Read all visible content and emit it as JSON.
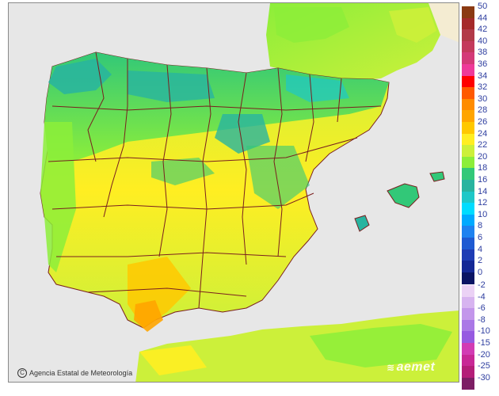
{
  "credit": {
    "copyright_symbol": "C",
    "text": "Agencia Estatal de Meteorología"
  },
  "logo": {
    "text": "aemet",
    "swoosh": "≋"
  },
  "colors": {
    "sea": "#e7e7e7",
    "land_outside": "#f4ecd2",
    "border": "#7a1f1f"
  },
  "legend": {
    "positive": [
      {
        "label": "50",
        "color": "#8b3a12"
      },
      {
        "label": "44",
        "color": "#a52a2a"
      },
      {
        "label": "42",
        "color": "#b23a48"
      },
      {
        "label": "40",
        "color": "#c43a5c"
      },
      {
        "label": "38",
        "color": "#d43a78"
      },
      {
        "label": "36",
        "color": "#ee3a9a"
      },
      {
        "label": "34",
        "color": "#ff0000"
      },
      {
        "label": "32",
        "color": "#ff5a00"
      },
      {
        "label": "30",
        "color": "#ff8c00"
      },
      {
        "label": "28",
        "color": "#ffa500"
      },
      {
        "label": "26",
        "color": "#ffc800"
      },
      {
        "label": "24",
        "color": "#ffee22"
      },
      {
        "label": "22",
        "color": "#ccf03a"
      },
      {
        "label": "20",
        "color": "#8cee3a"
      },
      {
        "label": "18",
        "color": "#32c878"
      },
      {
        "label": "16",
        "color": "#28b4a0"
      },
      {
        "label": "14",
        "color": "#1ec8c8"
      },
      {
        "label": "12",
        "color": "#00dcff"
      },
      {
        "label": "10",
        "color": "#00aaff"
      },
      {
        "label": "8",
        "color": "#1e82f0"
      },
      {
        "label": "6",
        "color": "#1e5ad2"
      },
      {
        "label": "4",
        "color": "#1e3cb4"
      },
      {
        "label": "2",
        "color": "#142896"
      },
      {
        "label": "0",
        "color": "#0a1464"
      }
    ],
    "negative": [
      {
        "label": "-2",
        "color": "#ebd2f5"
      },
      {
        "label": "-4",
        "color": "#d7b4f0"
      },
      {
        "label": "-6",
        "color": "#c396eb"
      },
      {
        "label": "-8",
        "color": "#aa78e6"
      },
      {
        "label": "-10",
        "color": "#965ae1"
      },
      {
        "label": "-15",
        "color": "#d23cb4"
      },
      {
        "label": "-20",
        "color": "#c82896"
      },
      {
        "label": "-25",
        "color": "#b41e78"
      },
      {
        "label": "-30",
        "color": "#7d1e64"
      }
    ]
  }
}
